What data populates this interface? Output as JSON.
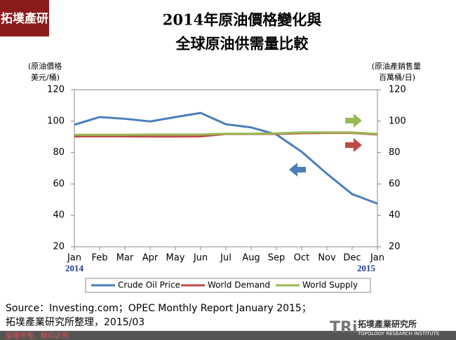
{
  "logo": "拓墣產研",
  "chart_data": {
    "type": "line",
    "title": [
      "2014年原油價格變化與",
      "全球原油供需量比較"
    ],
    "ylabel": [
      "(原油價格",
      "美元/桶)"
    ],
    "y2label": [
      "(原油產銷售量",
      "百萬桶/日)"
    ],
    "categories": [
      "Jan",
      "Feb",
      "Mar",
      "Apr",
      "May",
      "Jun",
      "Jul",
      "Aug",
      "Sep",
      "Oct",
      "Nov",
      "Dec",
      "Jan"
    ],
    "year_start": "2014",
    "year_end": "2015",
    "series": [
      {
        "name": "Crude Oil Price",
        "color": "#4a7ebb",
        "values": [
          97.7,
          102.6,
          101.5,
          99.8,
          102.6,
          105.2,
          98,
          96,
          91.5,
          80.5,
          66.5,
          53.5,
          47.5
        ]
      },
      {
        "name": "World Demand",
        "color": "#be4b48",
        "axis": "y2",
        "values": [
          90.3,
          90.3,
          90.3,
          90.2,
          90.2,
          90.3,
          91.8,
          91.8,
          91.9,
          92.3,
          92.5,
          92.5,
          91.5
        ]
      },
      {
        "name": "World Supply",
        "color": "#98b954",
        "axis": "y2",
        "values": [
          91.3,
          91.3,
          91.3,
          91.5,
          91.5,
          91.5,
          92,
          92,
          92.2,
          92.8,
          92.8,
          92.8,
          91.8
        ]
      }
    ],
    "ylim": [
      20,
      120
    ],
    "yticks": [
      20,
      40,
      60,
      80,
      100,
      120
    ],
    "y2lim": [
      20,
      120
    ],
    "y2ticks": [
      20,
      40,
      60,
      80,
      100,
      120
    ],
    "legend": "bottom",
    "grid": false
  },
  "source": [
    "Source：Investing.com；OPEC  Monthly  Report January  2015；",
    "拓墣產業研究所整理，2015/03"
  ],
  "footer": "版權所有．翻印必究",
  "brand": {
    "name": "拓墣產業研究所",
    "english": "TOPOLOGY RESEARCH INSTITUTE"
  }
}
